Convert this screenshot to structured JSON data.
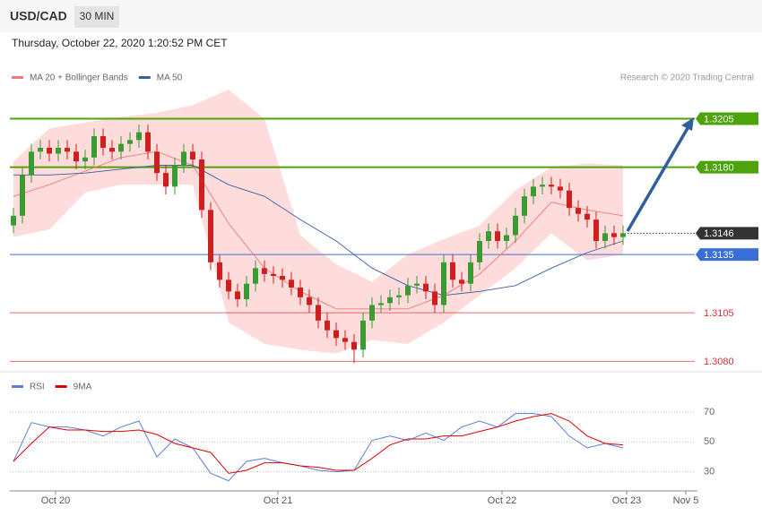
{
  "header": {
    "symbol": "USD/CAD",
    "interval": "30 MIN",
    "timestamp": "Thursday, October 22, 2020 1:20:52 PM CET"
  },
  "chart_data": [
    {
      "type": "candlestick",
      "copyright": "Research © 2020 Trading Central",
      "up_color": "#3c9a32",
      "down_color": "#cc2020",
      "xlim": [
        -0.4,
        76.3
      ],
      "ylim": [
        1.3076,
        1.322
      ],
      "xticks": [
        {
          "value": 4.7,
          "label": "Oct 20"
        },
        {
          "value": 29.5,
          "label": "Oct 21"
        },
        {
          "value": 54.5,
          "label": "Oct 22"
        },
        {
          "value": 68.4,
          "label": "Oct 23"
        },
        {
          "value": 75,
          "label": "Nov 5"
        }
      ],
      "open": [
        1.315,
        1.3155,
        1.3176,
        1.3188,
        1.319,
        1.3187,
        1.319,
        1.3188,
        1.3183,
        1.3185,
        1.3196,
        1.319,
        1.3188,
        1.3192,
        1.3194,
        1.3198,
        1.3188,
        1.3177,
        1.317,
        1.3181,
        1.3188,
        1.3184,
        1.3158,
        1.3131,
        1.3122,
        1.3116,
        1.3112,
        1.312,
        1.3128,
        1.3125,
        1.3124,
        1.3122,
        1.3118,
        1.3113,
        1.3109,
        1.3101,
        1.3096,
        1.3092,
        1.309,
        1.3086,
        1.3101,
        1.3109,
        1.311,
        1.3113,
        1.3114,
        1.3119,
        1.312,
        1.3116,
        1.3109,
        1.3131,
        1.3122,
        1.312,
        1.3131,
        1.3142,
        1.3147,
        1.3142,
        1.3145,
        1.3155,
        1.3165,
        1.317,
        1.3171,
        1.317,
        1.3168,
        1.3159,
        1.3156,
        1.3153,
        1.3142,
        1.3146,
        1.3144
      ],
      "high": [
        1.3159,
        1.318,
        1.3192,
        1.3194,
        1.3194,
        1.3194,
        1.3194,
        1.3192,
        1.3189,
        1.32,
        1.32,
        1.3194,
        1.3196,
        1.3198,
        1.3202,
        1.3202,
        1.3192,
        1.3181,
        1.3185,
        1.3192,
        1.3192,
        1.3188,
        1.3162,
        1.3135,
        1.3126,
        1.312,
        1.3124,
        1.3132,
        1.3132,
        1.3129,
        1.3128,
        1.3126,
        1.3122,
        1.3117,
        1.3113,
        1.3105,
        1.31,
        1.3096,
        1.3094,
        1.3105,
        1.3113,
        1.3114,
        1.3117,
        1.3118,
        1.3123,
        1.3124,
        1.3124,
        1.312,
        1.3135,
        1.3135,
        1.3126,
        1.3135,
        1.3146,
        1.3151,
        1.3151,
        1.3149,
        1.3159,
        1.3169,
        1.3174,
        1.3175,
        1.3175,
        1.3174,
        1.3172,
        1.3163,
        1.316,
        1.3157,
        1.315,
        1.315,
        1.315
      ],
      "low": [
        1.3146,
        1.3151,
        1.3172,
        1.3184,
        1.3183,
        1.3183,
        1.3184,
        1.3179,
        1.3179,
        1.3181,
        1.3186,
        1.3184,
        1.3184,
        1.3188,
        1.319,
        1.3184,
        1.3173,
        1.3166,
        1.3166,
        1.3177,
        1.318,
        1.3154,
        1.3127,
        1.3118,
        1.3112,
        1.3108,
        1.3108,
        1.3116,
        1.3121,
        1.312,
        1.3118,
        1.3114,
        1.3109,
        1.3105,
        1.3097,
        1.3092,
        1.3088,
        1.3086,
        1.3079,
        1.3082,
        1.3097,
        1.3105,
        1.3106,
        1.3109,
        1.311,
        1.3115,
        1.3112,
        1.3105,
        1.3105,
        1.3118,
        1.3116,
        1.3116,
        1.3127,
        1.3138,
        1.3138,
        1.3138,
        1.3141,
        1.3151,
        1.3161,
        1.3166,
        1.3166,
        1.3164,
        1.3155,
        1.3152,
        1.3149,
        1.3138,
        1.3138,
        1.314,
        1.314
      ],
      "close": [
        1.3155,
        1.3176,
        1.3188,
        1.319,
        1.3187,
        1.319,
        1.3188,
        1.3183,
        1.3185,
        1.3196,
        1.319,
        1.3188,
        1.3192,
        1.3194,
        1.3198,
        1.3188,
        1.3177,
        1.317,
        1.3181,
        1.3188,
        1.3184,
        1.3158,
        1.3131,
        1.3122,
        1.3116,
        1.3112,
        1.312,
        1.3128,
        1.3125,
        1.3124,
        1.3122,
        1.3118,
        1.3113,
        1.3109,
        1.3101,
        1.3096,
        1.3092,
        1.309,
        1.3086,
        1.3101,
        1.3109,
        1.311,
        1.3113,
        1.3114,
        1.3119,
        1.312,
        1.3116,
        1.3109,
        1.3131,
        1.3122,
        1.312,
        1.3131,
        1.3142,
        1.3147,
        1.3142,
        1.3145,
        1.3155,
        1.3165,
        1.317,
        1.3171,
        1.317,
        1.3168,
        1.3159,
        1.3156,
        1.3153,
        1.3142,
        1.3146,
        1.3144,
        1.3146
      ],
      "overlays": [
        {
          "name": "MA 20 + Bollinger Bands",
          "color": "#f07878",
          "band_color": "#ffd6d6",
          "x": [
            0,
            4,
            8,
            12,
            16,
            20,
            24,
            28,
            32,
            36,
            40,
            44,
            48,
            52,
            56,
            60,
            64,
            68
          ],
          "values": [
            1.3165,
            1.3171,
            1.3178,
            1.3185,
            1.3188,
            1.3181,
            1.3151,
            1.3128,
            1.3116,
            1.3107,
            1.3107,
            1.3107,
            1.3114,
            1.3125,
            1.3142,
            1.3162,
            1.3158,
            1.3155
          ],
          "upper": [
            1.3183,
            1.32,
            1.3203,
            1.3206,
            1.3208,
            1.3212,
            1.322,
            1.3205,
            1.3145,
            1.313,
            1.3121,
            1.3135,
            1.3143,
            1.315,
            1.3168,
            1.318,
            1.3182,
            1.3181
          ],
          "lower": [
            1.3144,
            1.3148,
            1.3167,
            1.3171,
            1.3171,
            1.3171,
            1.31,
            1.3089,
            1.3086,
            1.3084,
            1.3091,
            1.3089,
            1.31,
            1.3114,
            1.3128,
            1.3146,
            1.3132,
            1.3135
          ]
        },
        {
          "name": "MA 50",
          "color": "#3a5f9e",
          "x": [
            0,
            4,
            8,
            12,
            16,
            20,
            24,
            28,
            32,
            36,
            40,
            44,
            48,
            52,
            56,
            60,
            64,
            68
          ],
          "values": [
            1.3176,
            1.3176,
            1.3177,
            1.3179,
            1.3181,
            1.3181,
            1.3171,
            1.3165,
            1.3153,
            1.3142,
            1.3128,
            1.3119,
            1.3114,
            1.3116,
            1.3119,
            1.3128,
            1.3136,
            1.3142
          ]
        }
      ],
      "levels": [
        {
          "value": 1.3205,
          "label": "1.3205",
          "color": "#4ca40a",
          "line": "solid",
          "tag": "box"
        },
        {
          "value": 1.318,
          "label": "1.3180",
          "color": "#4ca40a",
          "line": "solid",
          "tag": "box"
        },
        {
          "value": 1.3146,
          "label": "1.3146",
          "color": "#333333",
          "line": "dotted",
          "tag": "box"
        },
        {
          "value": 1.3135,
          "label": "1.3135",
          "color": "#3a6fd8",
          "line": "solid",
          "tag": "box"
        },
        {
          "value": 1.3105,
          "label": "1.3105",
          "color": "#e03030",
          "line": "solid",
          "tag": "text"
        },
        {
          "value": 1.308,
          "label": "1.3080",
          "color": "#e03030",
          "line": "solid",
          "tag": "text"
        }
      ]
    },
    {
      "type": "line",
      "xlim": [
        -0.4,
        76.3
      ],
      "ylim": [
        19,
        94
      ],
      "yticks": [
        30,
        50,
        70
      ],
      "x": [
        0,
        2,
        4,
        6,
        8,
        10,
        12,
        14,
        16,
        18,
        20,
        22,
        24,
        26,
        28,
        30,
        32,
        34,
        36,
        38,
        40,
        42,
        44,
        46,
        48,
        50,
        52,
        54,
        56,
        58,
        60,
        62,
        64,
        66,
        68
      ],
      "series": [
        {
          "name": "RSI",
          "color": "#5b7fd6",
          "values": [
            37,
            63,
            60,
            60,
            58,
            54,
            60,
            64,
            40,
            52,
            46,
            29,
            24,
            37,
            39,
            36,
            34,
            31,
            30,
            31,
            51,
            54,
            51,
            56,
            51,
            60,
            64,
            60,
            69,
            69,
            67,
            54,
            46,
            49,
            46
          ]
        },
        {
          "name": "9MA",
          "color": "#e00000",
          "values": [
            37,
            49,
            60,
            58,
            58,
            57,
            57,
            58,
            55,
            49,
            46,
            43,
            29,
            31,
            36,
            36,
            34,
            33,
            31,
            31,
            39,
            48,
            52,
            52,
            54,
            54,
            57,
            60,
            64,
            67,
            69,
            64,
            54,
            49,
            48
          ]
        }
      ]
    }
  ]
}
